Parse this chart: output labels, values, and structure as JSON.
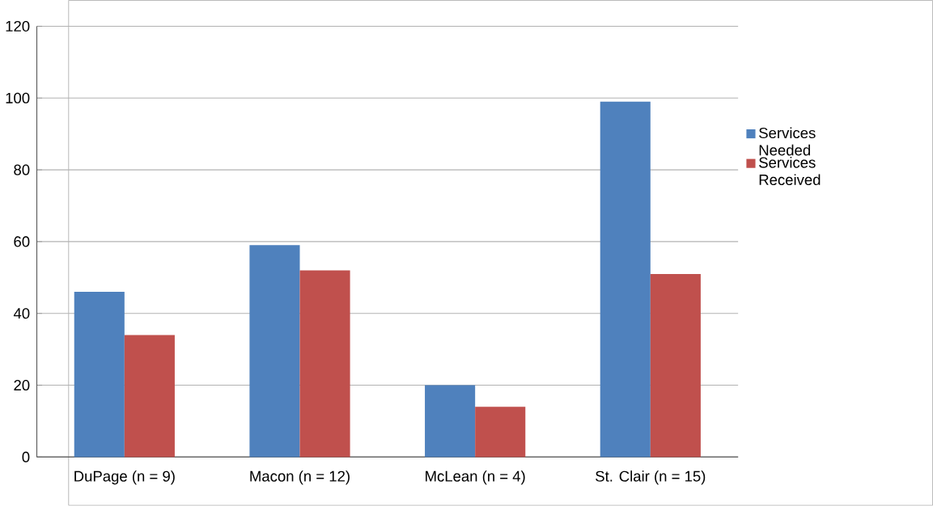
{
  "chart_data": {
    "type": "bar",
    "categories": [
      "DuPage (n = 9)",
      "Macon (n = 12)",
      "McLean (n = 4)",
      "St. Clair (n = 15)"
    ],
    "series": [
      {
        "name": "Services Needed",
        "color": "#4f81bd",
        "values": [
          46,
          59,
          20,
          99
        ]
      },
      {
        "name": "Services Received",
        "color": "#c0504d",
        "values": [
          34,
          52,
          14,
          51
        ]
      }
    ],
    "ylim": [
      0,
      120
    ],
    "yticks": [
      0,
      20,
      40,
      60,
      80,
      100,
      120
    ],
    "grid": "y",
    "legend": "right"
  }
}
